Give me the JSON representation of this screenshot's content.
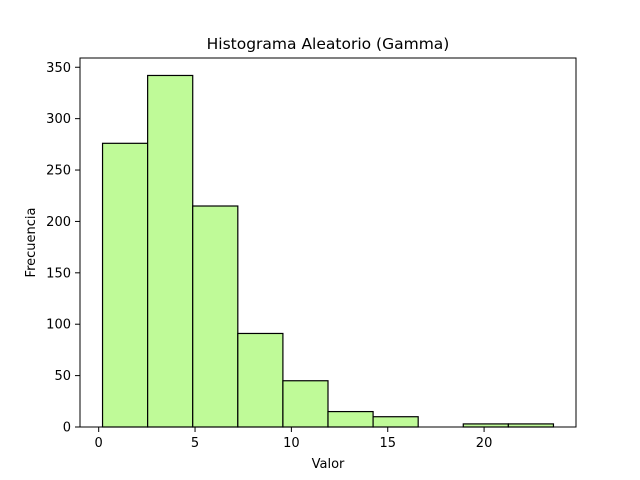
{
  "chart_data": {
    "type": "bar",
    "title": "Histograma Aleatorio (Gamma)",
    "xlabel": "Valor",
    "ylabel": "Frecuencia",
    "bins": [
      {
        "start": 0.2,
        "end": 2.54,
        "count": 276
      },
      {
        "start": 2.54,
        "end": 4.88,
        "count": 342
      },
      {
        "start": 4.88,
        "end": 7.22,
        "count": 215
      },
      {
        "start": 7.22,
        "end": 9.56,
        "count": 91
      },
      {
        "start": 9.56,
        "end": 11.9,
        "count": 45
      },
      {
        "start": 11.9,
        "end": 14.24,
        "count": 15
      },
      {
        "start": 14.24,
        "end": 16.58,
        "count": 10
      },
      {
        "start": 16.58,
        "end": 18.92,
        "count": 0
      },
      {
        "start": 18.92,
        "end": 21.26,
        "count": 3
      },
      {
        "start": 21.26,
        "end": 23.6,
        "count": 3
      }
    ],
    "xlim": [
      -0.97,
      24.77
    ],
    "ylim": [
      0,
      359
    ],
    "xticks": [
      0,
      5,
      10,
      15,
      20
    ],
    "yticks": [
      0,
      50,
      100,
      150,
      200,
      250,
      300,
      350
    ],
    "bar_color": "#bffa98",
    "edge_color": "#000000",
    "grid": false
  }
}
